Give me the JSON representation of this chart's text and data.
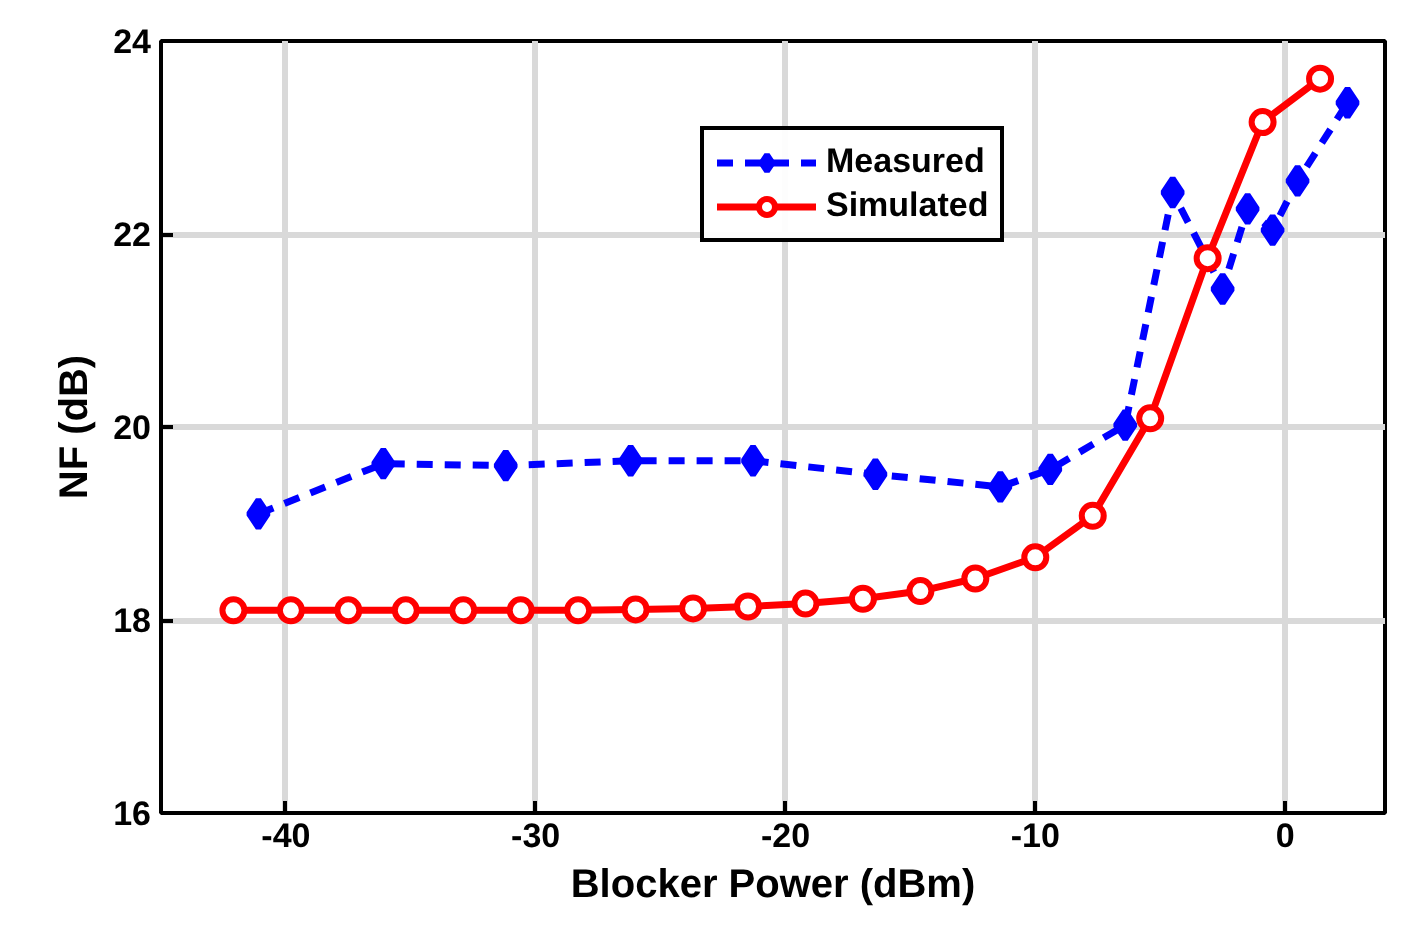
{
  "chart_data": {
    "type": "line",
    "xlabel": "Blocker Power (dBm)",
    "ylabel": "NF (dB)",
    "xlim": [
      -45,
      4
    ],
    "xticks": [
      -40,
      -30,
      -20,
      -10,
      0
    ],
    "ylim": [
      16,
      24
    ],
    "yticks": [
      16,
      18,
      20,
      22,
      24
    ],
    "grid": true,
    "legend": "top right",
    "series": [
      {
        "name": "Measured",
        "color": "#0000ff",
        "marker": "diamond",
        "line_style": "dashed",
        "x": [
          -41.1,
          -36.1,
          -31.2,
          -26.2,
          -21.3,
          -16.4,
          -11.4,
          -9.4,
          -6.4,
          -4.5,
          -2.5,
          -1.5,
          -0.5,
          0.5,
          2.5
        ],
        "values": [
          19.1,
          19.62,
          19.6,
          19.65,
          19.65,
          19.51,
          19.38,
          19.56,
          20.02,
          22.43,
          21.43,
          22.26,
          22.04,
          22.55,
          23.36
        ]
      },
      {
        "name": "Simulated",
        "color": "#ff0000",
        "marker": "circle",
        "line_style": "solid",
        "x": [
          -42.1,
          -39.8,
          -37.5,
          -35.2,
          -32.9,
          -30.6,
          -28.3,
          -26.0,
          -23.7,
          -21.5,
          -19.2,
          -16.9,
          -14.6,
          -12.4,
          -10.0,
          -7.7,
          -5.4,
          -3.1,
          -0.9,
          1.4
        ],
        "values": [
          18.1,
          18.1,
          18.1,
          18.1,
          18.1,
          18.1,
          18.1,
          18.11,
          18.12,
          18.14,
          18.17,
          18.22,
          18.3,
          18.43,
          18.65,
          19.08,
          20.09,
          21.75,
          23.16,
          23.61
        ]
      }
    ]
  }
}
